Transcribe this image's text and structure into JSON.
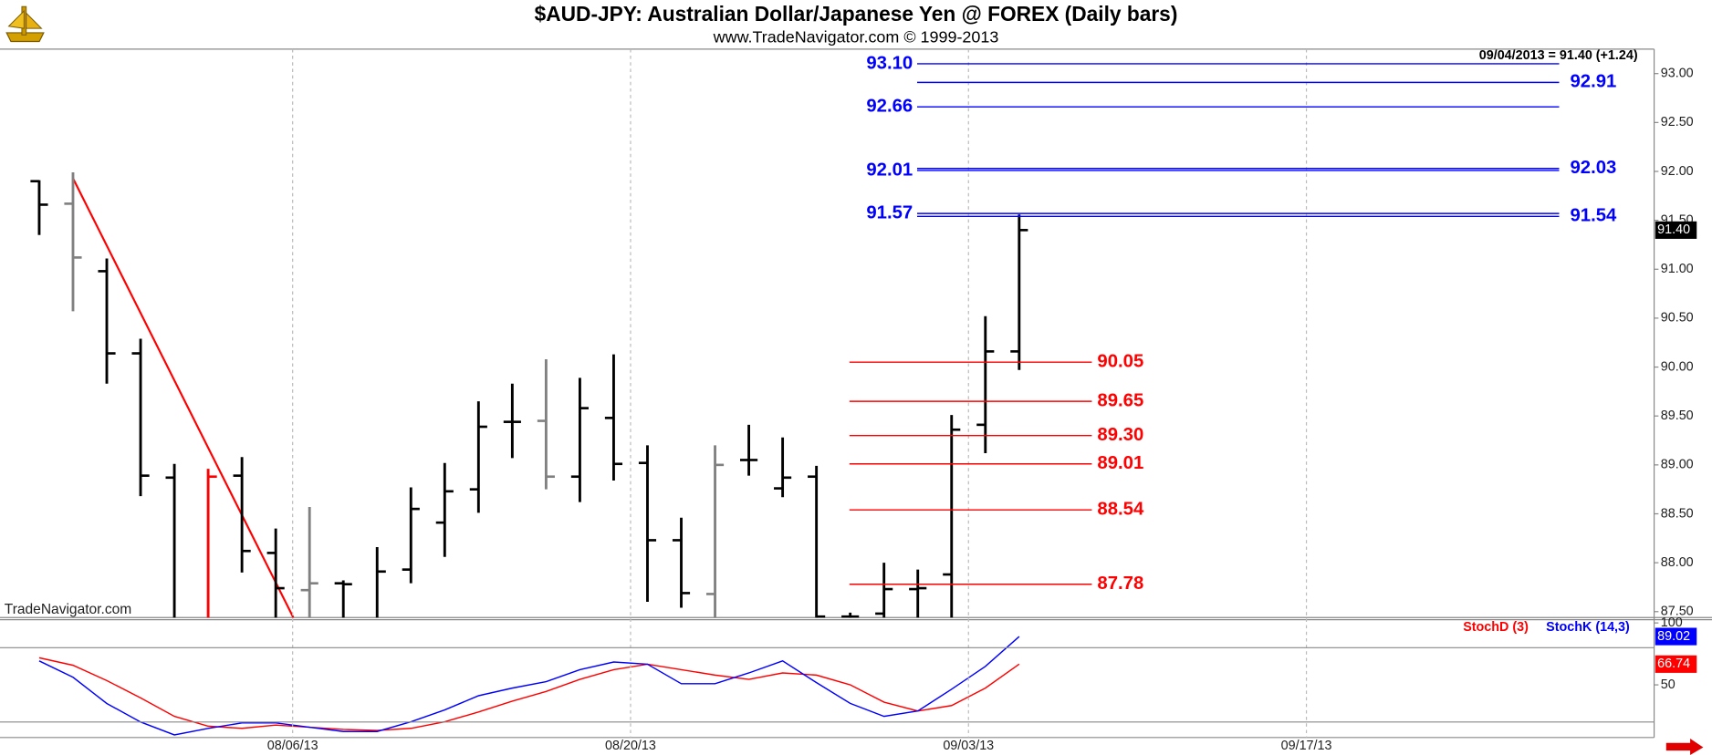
{
  "chart_data": [
    {
      "type": "ohlc",
      "title": "$AUD-JPY:  Australian Dollar/Japanese Yen @ FOREX  (Daily bars)",
      "subtitle": "www.TradeNavigator.com © 1999-2013",
      "quote": "09/04/2013 = 91.40 (+1.24)",
      "watermark": "TradeNavigator.com",
      "categories": [
        null,
        null,
        null,
        null,
        null,
        null,
        null,
        null,
        null,
        null,
        null,
        null,
        null,
        null,
        null,
        null,
        null,
        null,
        null,
        null,
        null,
        null,
        null,
        null,
        null,
        null,
        null,
        null,
        null,
        null
      ],
      "open": [
        91.9,
        91.67,
        90.98,
        90.14,
        88.87,
        87.4,
        88.89,
        88.1,
        87.72,
        87.79,
        87.4,
        87.93,
        88.41,
        88.75,
        89.44,
        89.45,
        88.88,
        89.48,
        89.02,
        88.23,
        87.68,
        89.05,
        88.76,
        88.88,
        87.45,
        87.48,
        87.73,
        87.88,
        89.41,
        90.16
      ],
      "high": [
        91.91,
        91.99,
        91.11,
        90.29,
        89.01,
        88.96,
        89.08,
        88.35,
        88.57,
        87.82,
        88.16,
        88.77,
        89.02,
        89.65,
        89.83,
        90.08,
        89.89,
        90.13,
        89.2,
        88.46,
        89.2,
        89.41,
        89.28,
        88.99,
        87.49,
        88.0,
        87.93,
        89.51,
        90.52,
        91.56
      ],
      "low": [
        91.35,
        90.57,
        89.83,
        88.68,
        87.2,
        87.2,
        87.9,
        87.4,
        87.3,
        87.3,
        87.3,
        87.79,
        88.06,
        88.51,
        89.07,
        88.75,
        88.62,
        88.84,
        87.6,
        87.54,
        87.3,
        88.89,
        88.67,
        87.3,
        87.3,
        87.3,
        87.3,
        87.3,
        89.12,
        89.97
      ],
      "close": [
        91.66,
        91.12,
        90.14,
        88.89,
        87.35,
        88.88,
        88.12,
        87.74,
        87.79,
        87.78,
        87.91,
        88.55,
        88.73,
        89.39,
        89.44,
        88.88,
        89.58,
        89.01,
        88.23,
        87.69,
        89.0,
        89.05,
        88.87,
        87.45,
        87.45,
        87.73,
        87.74,
        89.36,
        90.16,
        91.4
      ],
      "bar_colors": [
        "#000000",
        "#808080",
        "#000000",
        "#000000",
        "#000000",
        "#ff0000",
        "#000000",
        "#000000",
        "#808080",
        "#000000",
        "#000000",
        "#000000",
        "#000000",
        "#000000",
        "#000000",
        "#808080",
        "#000000",
        "#000000",
        "#000000",
        "#000000",
        "#808080",
        "#000000",
        "#000000",
        "#000000",
        "#000000",
        "#000000",
        "#000000",
        "#000000",
        "#000000",
        "#000000"
      ],
      "xlim": [
        -1.16,
        47.79
      ],
      "xticks": [
        {
          "value": 7.5,
          "label": "08/06/13"
        },
        {
          "value": 17.5,
          "label": "08/20/13"
        },
        {
          "value": 27.5,
          "label": "09/03/13"
        },
        {
          "value": 37.5,
          "label": "09/17/13"
        }
      ],
      "ylim": [
        87.44,
        93.25
      ],
      "yticks": [
        {
          "value": 87.5,
          "label": "87.50"
        },
        {
          "value": 88,
          "label": "88.00"
        },
        {
          "value": 88.5,
          "label": "88.50"
        },
        {
          "value": 89,
          "label": "89.00"
        },
        {
          "value": 89.5,
          "label": "89.50"
        },
        {
          "value": 90,
          "label": "90.00"
        },
        {
          "value": 90.5,
          "label": "90.50"
        },
        {
          "value": 91,
          "label": "91.00"
        },
        {
          "value": 91.5,
          "label": "91.50"
        },
        {
          "value": 92,
          "label": "92.00"
        },
        {
          "value": 92.5,
          "label": "92.50"
        },
        {
          "value": 93,
          "label": "93.00"
        }
      ],
      "last_price": {
        "value": 91.4,
        "label": "91.40"
      },
      "trendline": {
        "color": "#ff0000",
        "x": [
          1,
          7.52
        ],
        "values": [
          91.93,
          87.44
        ]
      },
      "levels": [
        {
          "color": "#0000ff",
          "values": [
            93.1,
            92.66,
            92.01,
            91.57
          ],
          "value_labels": [
            "93.10",
            "92.66",
            "92.01",
            "91.57"
          ]
        },
        {
          "color": "#0000ff",
          "values": [
            92.91,
            92.03,
            91.54
          ],
          "value_labels": [
            "92.91",
            "92.03",
            "91.54"
          ]
        },
        {
          "color": "#ff0000",
          "values": [
            90.05,
            89.65,
            89.3,
            89.01,
            88.54,
            87.78
          ],
          "value_labels": [
            "90.05",
            "89.65",
            "89.30",
            "89.01",
            "88.54",
            "87.78"
          ]
        }
      ]
    },
    {
      "type": "line",
      "series": [
        {
          "name": "StochD (3)",
          "color": "#ff0000",
          "values": [
            71.9,
            65.8,
            53.5,
            39.5,
            24.6,
            16.7,
            14.9,
            17.5,
            15.8,
            14.0,
            13.2,
            14.9,
            20.2,
            28.1,
            36.8,
            44.7,
            54.4,
            62.3,
            66.7,
            62.3,
            57.9,
            54.4,
            59.6,
            57.9,
            50.0,
            36.0,
            28.9,
            33.3,
            47.4,
            66.74
          ]
        },
        {
          "name": "StochK (14,3)",
          "color": "#0000ff",
          "values": [
            69.3,
            56.1,
            35.0,
            20.0,
            9.6,
            14.9,
            19.3,
            19.3,
            15.8,
            12.3,
            12.3,
            20.2,
            29.8,
            41.2,
            47.4,
            52.6,
            62.3,
            68.4,
            66.7,
            50.9,
            50.9,
            59.6,
            69.3,
            51.8,
            35.1,
            24.6,
            28.9,
            46.5,
            64.9,
            89.02
          ]
        }
      ],
      "ylim": [
        7.5,
        102.6
      ],
      "yticks": [
        50,
        100
      ],
      "ref_lines": [
        20,
        80
      ]
    }
  ]
}
